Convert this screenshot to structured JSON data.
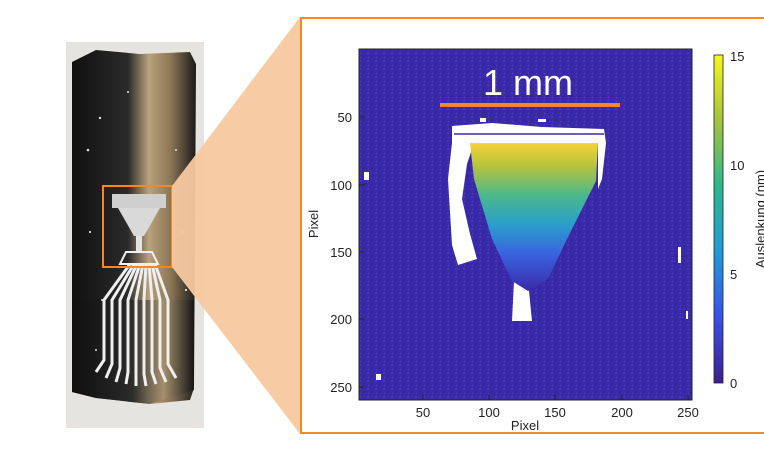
{
  "plot": {
    "x_axis": {
      "label": "Pixel",
      "ticks": [
        "50",
        "100",
        "150",
        "200",
        "250"
      ]
    },
    "y_axis": {
      "label": "Pixel",
      "ticks": [
        "50",
        "100",
        "150",
        "200",
        "250"
      ]
    },
    "colorbar": {
      "label": "Auslenkung (nm)",
      "ticks": [
        "0",
        "5",
        "10",
        "15"
      ],
      "min": 0,
      "max": 15
    },
    "scale_bar": {
      "label": "1 mm"
    }
  },
  "colors": {
    "highlight": "#f08a24",
    "background_field": "#3b2aa8",
    "cone": "#f7c9a0"
  }
}
